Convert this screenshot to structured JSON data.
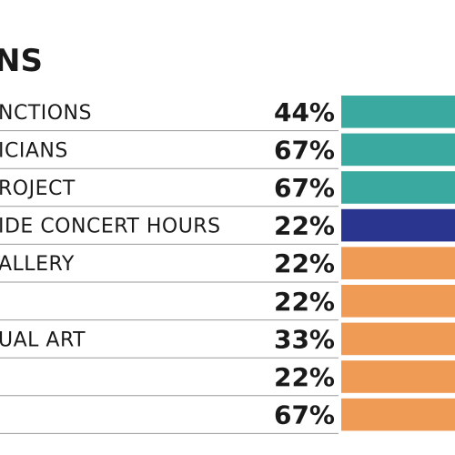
{
  "chart_data": {
    "type": "bar",
    "orientation": "horizontal",
    "title": "NS",
    "categories": [
      "NCTIONS",
      "ICIANS",
      "ROJECT",
      "IDE CONCERT HOURS",
      "ALLERY",
      "",
      "UAL ART",
      "",
      ""
    ],
    "labels": [
      "44%",
      "67%",
      "67%",
      "22%",
      "22%",
      "22%",
      "33%",
      "22%",
      "67%"
    ],
    "values": [
      44,
      67,
      67,
      22,
      22,
      22,
      33,
      22,
      67
    ],
    "colors": [
      "#3aa99f",
      "#3aa99f",
      "#3aa99f",
      "#2a3590",
      "#ef9a55",
      "#ef9a55",
      "#ef9a55",
      "#ef9a55",
      "#ef9a55"
    ],
    "legend": "none",
    "grid": false
  }
}
